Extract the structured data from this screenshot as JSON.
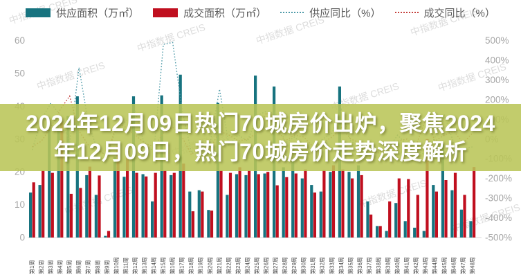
{
  "page": {
    "background": "#FFFFFF"
  },
  "legend": {
    "items": [
      {
        "label": "供应面积（万㎡）",
        "type": "bar",
        "color": "#17737F"
      },
      {
        "label": "成交面积（万㎡）",
        "type": "bar",
        "color": "#C00F1F"
      },
      {
        "label": "供应同比（%）",
        "type": "line",
        "color": "#4D9AA8"
      },
      {
        "label": "成交同比（%）",
        "type": "line",
        "color": "#C4413D"
      }
    ]
  },
  "overlay": {
    "color": "#B9C558",
    "opacity": 0.88,
    "text_color": "#FFFFFF",
    "line1": "2024年12月09日热门70城房价出炉，聚焦2024",
    "line2": "年12月09日，热门70城房价走势深度解析"
  },
  "watermark": {
    "text": "中指数据 CREIS",
    "color": "#9E9E9E"
  },
  "chart_data": {
    "type": "bar",
    "subtype": "combo bar + dotted line, dual axis",
    "grid": false,
    "legend_position": "top",
    "categories": [
      "第1周",
      "第2周",
      "第3周",
      "第4周",
      "第5周",
      "第6周",
      "第7周",
      "第8周",
      "第9周",
      "第10周",
      "第11周",
      "第12周",
      "第13周",
      "第14周",
      "第15周",
      "第16周",
      "第17周",
      "第18周",
      "第19周",
      "第20周",
      "第21周",
      "第22周",
      "第23周",
      "第24周",
      "第25周",
      "第26周",
      "第27周",
      "第28周",
      "第29周",
      "第30周",
      "第31周",
      "第32周",
      "第33周",
      "第34周",
      "第35周",
      "第36周",
      "第37周",
      "第38周",
      "第39周",
      "第40周",
      "第41周",
      "第42周",
      "第43周",
      "第44周",
      "第45周",
      "第46周",
      "第47周",
      "第48周"
    ],
    "left_axis": {
      "min": 0,
      "max": 60,
      "ticks": [
        "60",
        "50",
        "40",
        "30",
        "20",
        "10",
        "0"
      ],
      "label_color": "#A6A6A6"
    },
    "right_axis": {
      "min": -500,
      "max": 500,
      "ticks": [
        "500%",
        "400%",
        "300%",
        "200%",
        "100%",
        "0%",
        "-100%",
        "-200%",
        "-300%",
        "-400%",
        "-500%"
      ],
      "label_color": "#A6A6A6"
    },
    "series": [
      {
        "name": "供应面积（万㎡）",
        "type": "bar",
        "axis": "left",
        "color": "#17737F",
        "values": [
          13.7,
          16,
          33,
          33,
          37,
          43,
          19,
          13,
          0.5,
          24.5,
          18.5,
          43,
          19.3,
          11,
          43.3,
          19,
          49.6,
          14,
          14.4,
          8.4,
          41,
          13,
          19.3,
          19,
          49.3,
          19.5,
          46,
          21.4,
          23.2,
          18,
          16,
          14,
          20,
          46,
          20,
          22,
          11,
          3.5,
          2,
          10.5,
          5,
          3,
          2,
          16,
          28.5,
          14.4,
          8.5,
          5
        ]
      },
      {
        "name": "成交面积（万㎡）",
        "type": "bar",
        "axis": "left",
        "color": "#C00F1F",
        "values": [
          16.8,
          20.4,
          19.7,
          35.5,
          13.3,
          15.1,
          21.6,
          18.9,
          2,
          28,
          26.4,
          19.7,
          18.6,
          19.7,
          20.4,
          19.7,
          22.5,
          8,
          14,
          8.2,
          20.4,
          19.7,
          21.4,
          20.4,
          19.3,
          20,
          15.9,
          18.4,
          19.5,
          20.7,
          13.7,
          20.5,
          22,
          20.7,
          18,
          19,
          7,
          3.5,
          11,
          18,
          17.8,
          13,
          30,
          14,
          17.5,
          19.7,
          13,
          21.5
        ]
      },
      {
        "name": "供应同比（%）",
        "type": "line",
        "style": "dotted",
        "axis": "right",
        "color": "#4D9AA8",
        "values": [
          -55,
          100,
          183,
          120,
          -20,
          363,
          80,
          -60,
          -80,
          60,
          90,
          140,
          -30,
          -60,
          480,
          490,
          150,
          -70,
          -40,
          -20,
          253,
          -30,
          20,
          -10,
          120,
          140,
          130,
          -20,
          10,
          -30,
          -60,
          0,
          30,
          150,
          -10,
          -40,
          -70,
          -60,
          -50,
          20,
          -30,
          -60,
          -80,
          10,
          120,
          -20,
          -50,
          -40
        ]
      },
      {
        "name": "成交同比（%）",
        "type": "line",
        "style": "dotted",
        "axis": "right",
        "color": "#C4413D",
        "values": [
          -40,
          -10,
          60,
          150,
          218,
          40,
          -30,
          -50,
          -90,
          80,
          60,
          20,
          -20,
          -40,
          30,
          60,
          10,
          -80,
          -30,
          -50,
          40,
          20,
          -10,
          0,
          30,
          134,
          60,
          -10,
          20,
          10,
          -40,
          -20,
          10,
          60,
          0,
          -20,
          -60,
          -70,
          -40,
          -10,
          0,
          -30,
          100,
          -10,
          20,
          40,
          -20,
          30
        ]
      }
    ]
  }
}
